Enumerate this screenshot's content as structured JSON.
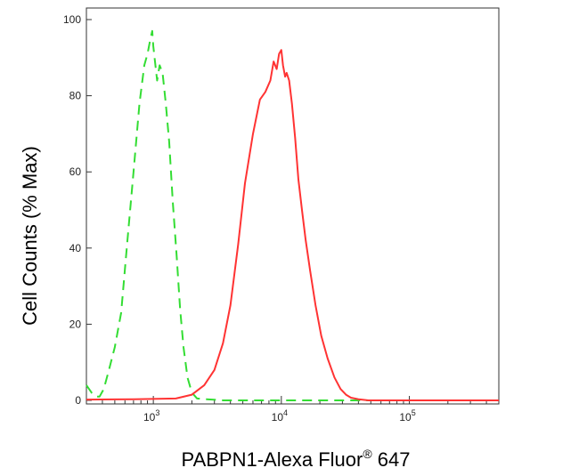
{
  "chart_data": {
    "type": "line",
    "title": "",
    "xlabel": "PABPN1-Alexa Fluor",
    "xlabel_superscript": "®",
    "xlabel_suffix": " 647",
    "ylabel": "Cell Counts (% Max)",
    "x_scale": "log",
    "xlim": [
      300,
      500000
    ],
    "ylim": [
      0,
      100
    ],
    "y_ticks": [
      0,
      20,
      40,
      60,
      80,
      100
    ],
    "y_tick_labels": [
      "0",
      "20",
      "40",
      "60",
      "80",
      "100"
    ],
    "x_major_ticks": [
      {
        "value": 1000,
        "base": "10",
        "exp": "3"
      },
      {
        "value": 10000,
        "base": "10",
        "exp": "4"
      },
      {
        "value": 100000,
        "base": "10",
        "exp": "5"
      }
    ],
    "grid": false,
    "legend": "none",
    "series": [
      {
        "color": "#33dd33",
        "style": "dashed",
        "x": [
          300,
          330,
          360,
          380,
          410,
          450,
          500,
          560,
          620,
          700,
          780,
          850,
          900,
          950,
          980,
          1000,
          1030,
          1070,
          1120,
          1180,
          1250,
          1330,
          1420,
          1520,
          1620,
          1720,
          1850,
          2000,
          2200,
          2600,
          3500,
          6000,
          10000,
          20000,
          50000,
          200000,
          500000
        ],
        "y": [
          4,
          2,
          1,
          1,
          3,
          8,
          14,
          23,
          40,
          60,
          78,
          88,
          91,
          95,
          97,
          93,
          89,
          84,
          88,
          86,
          78,
          68,
          52,
          38,
          24,
          14,
          6,
          2,
          0.5,
          0.3,
          0,
          0,
          0,
          0,
          0,
          0,
          0
        ]
      },
      {
        "color": "#ff3333",
        "style": "solid",
        "x": [
          300,
          700,
          1500,
          2000,
          2500,
          3000,
          3500,
          4000,
          4600,
          5200,
          6000,
          6800,
          7500,
          8200,
          8700,
          9200,
          9600,
          10000,
          10300,
          10700,
          11000,
          11500,
          12100,
          12800,
          13600,
          14500,
          15500,
          16800,
          18500,
          20500,
          23000,
          26000,
          29000,
          32000,
          35000,
          40000,
          48000,
          70000,
          200000,
          500000
        ],
        "y": [
          0.2,
          0.3,
          0.5,
          1.5,
          4,
          8,
          15,
          25,
          41,
          57,
          70,
          79,
          81,
          84,
          89,
          87,
          91,
          92,
          88,
          85,
          86,
          84,
          78,
          69,
          58,
          50,
          42,
          34,
          25,
          17,
          11,
          6,
          3,
          1.5,
          0.7,
          0.3,
          0,
          0,
          0,
          0
        ]
      }
    ]
  }
}
